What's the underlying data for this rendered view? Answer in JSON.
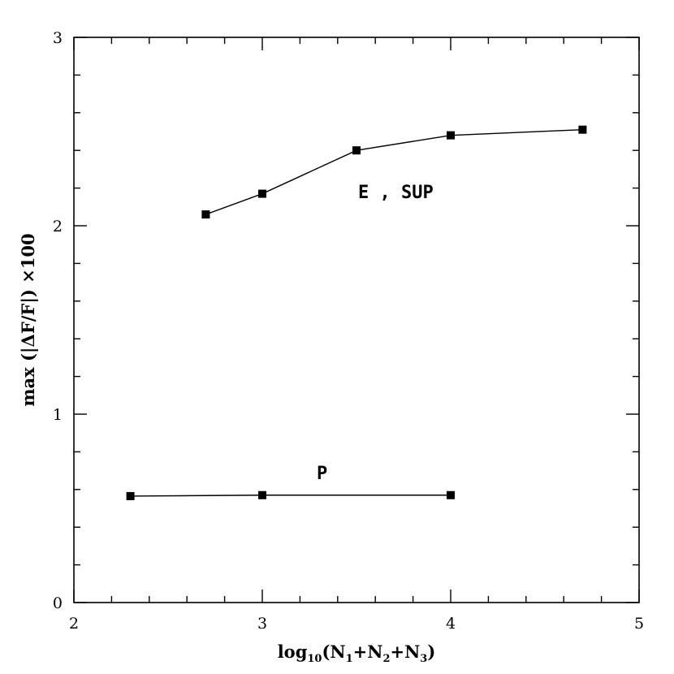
{
  "chart_data": {
    "type": "line",
    "xlabel": "log10(N1+N2+N3)",
    "xlabel_parts": {
      "base": "log",
      "base_sub": "10",
      "open": "(N",
      "s1": "1",
      "plus1": "+N",
      "s2": "2",
      "plus2": "+N",
      "s3": "3",
      "close": ")"
    },
    "ylabel": "max (|ΔF/F|) ×100",
    "xlim": [
      2,
      5
    ],
    "ylim": [
      0,
      3
    ],
    "x_ticks": [
      "2",
      "3",
      "4",
      "5"
    ],
    "y_ticks": [
      "0",
      "1",
      "2",
      "3"
    ],
    "grid": false,
    "series": [
      {
        "name": "E , SUP",
        "x": [
          2.7,
          3.0,
          3.5,
          4.0,
          4.7
        ],
        "y": [
          2.06,
          2.17,
          2.4,
          2.48,
          2.51
        ]
      },
      {
        "name": "P",
        "x": [
          2.3,
          3.0,
          4.0
        ],
        "y": [
          0.565,
          0.57,
          0.57
        ]
      }
    ]
  }
}
